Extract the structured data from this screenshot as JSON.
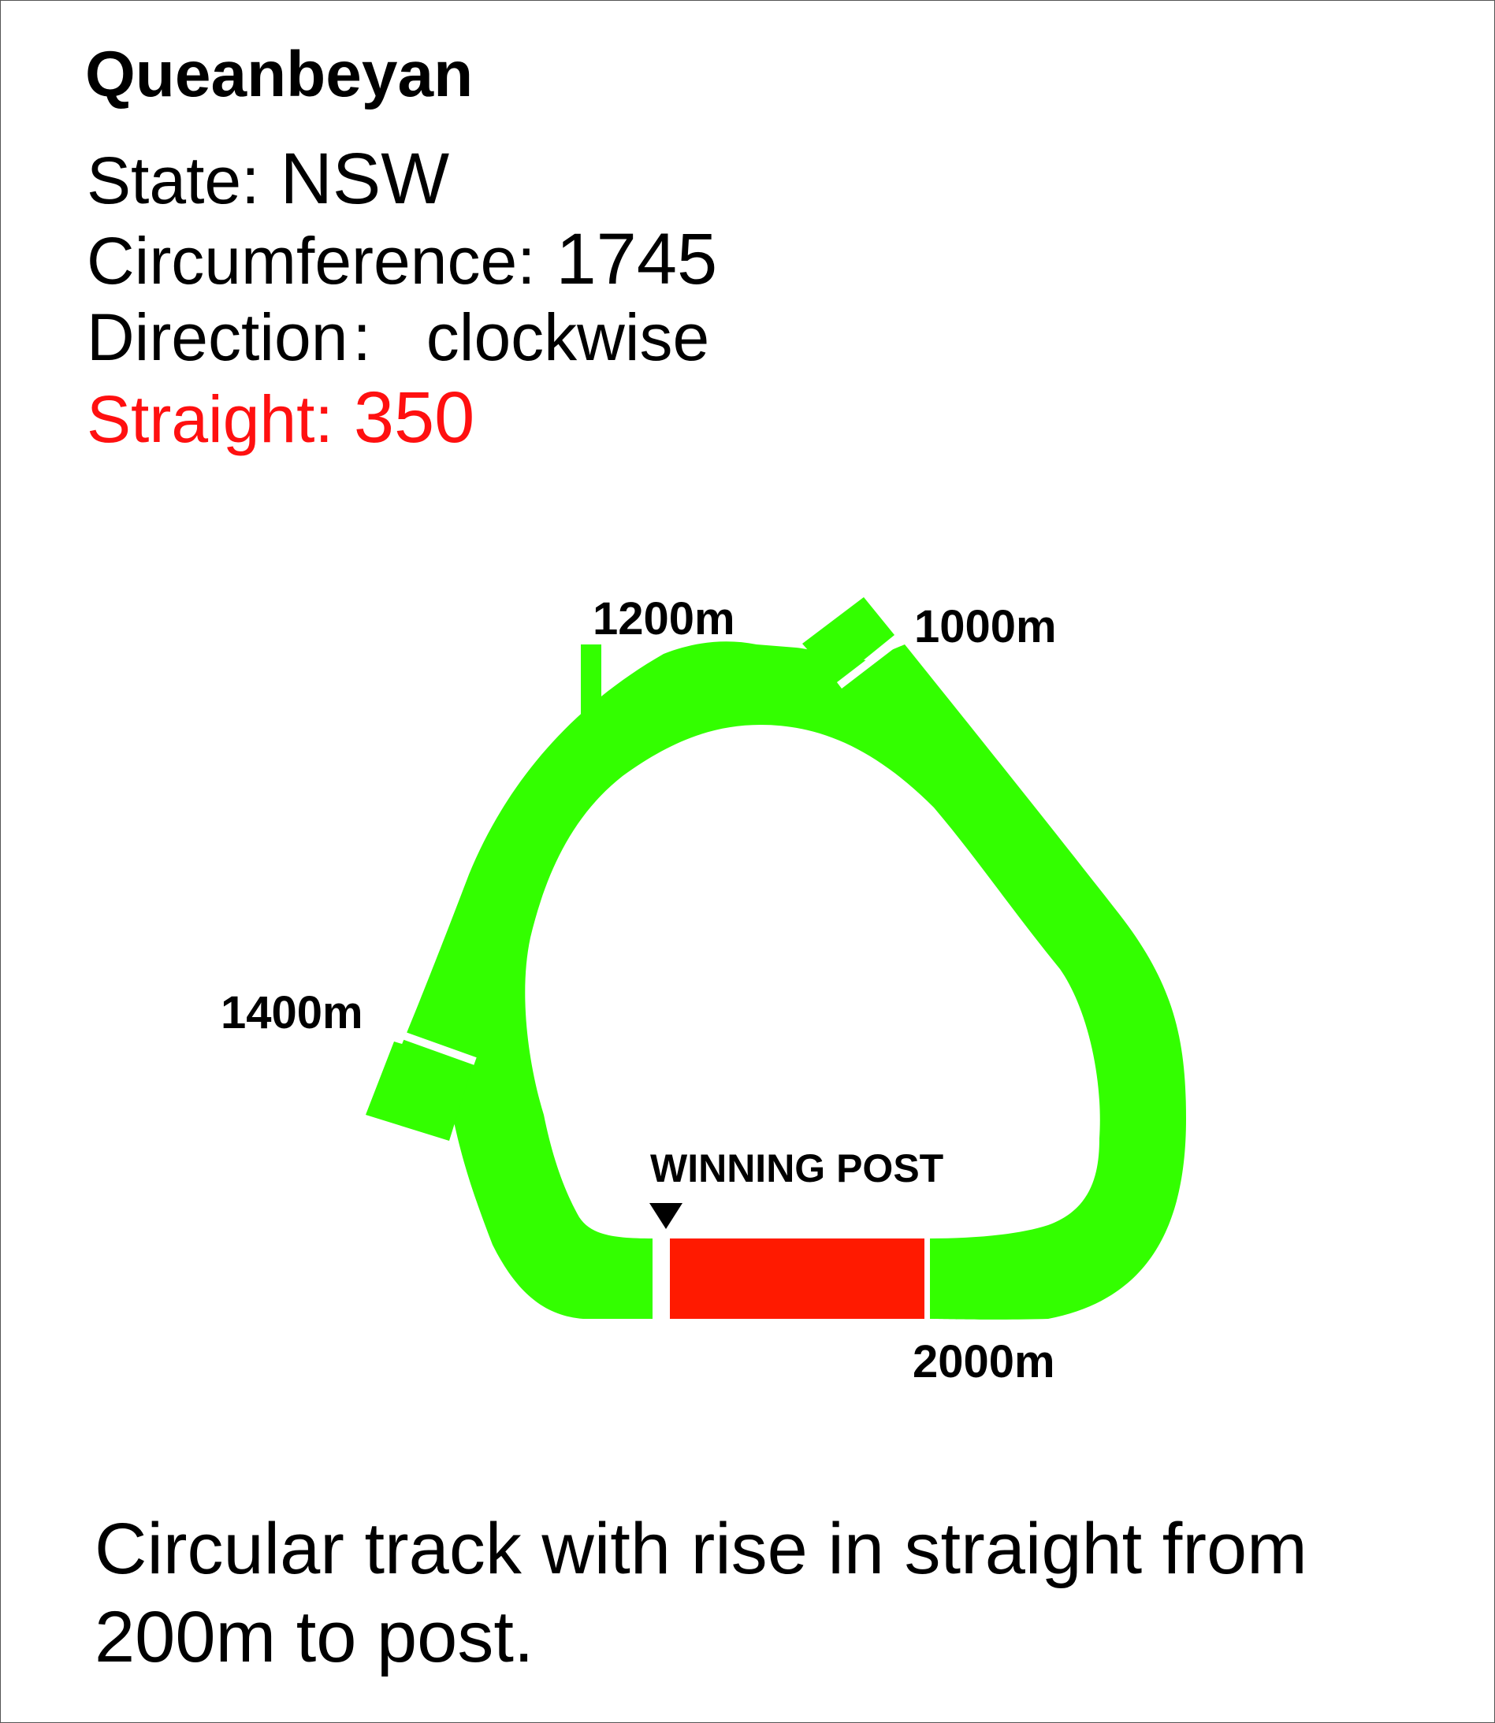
{
  "track": {
    "name": "Queanbeyan",
    "state_label": "State:",
    "state_value": "NSW",
    "circumference_label": "Circumference:",
    "circumference_value": "1745",
    "direction_label": "Direction",
    "direction_separator": ":",
    "direction_value": "clockwise",
    "straight_label": "Straight:",
    "straight_value": "350"
  },
  "markers": {
    "m1200": "1200m",
    "m1000": "1000m",
    "m1400": "1400m",
    "m2000": "2000m",
    "winning_post": "WINNING POST"
  },
  "colors": {
    "track": "#33ff00",
    "straight": "#ff1a00",
    "straight_text": "#ff1010"
  },
  "description": "Circular track with rise in straight from 200m to post."
}
